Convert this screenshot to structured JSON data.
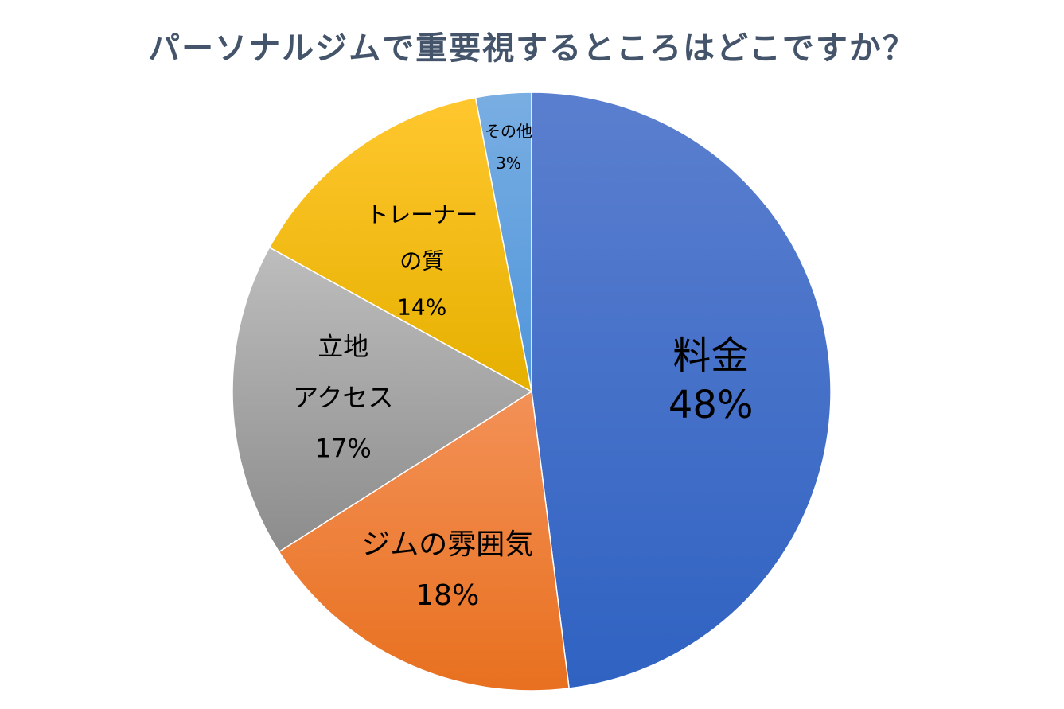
{
  "chart_data": {
    "type": "pie",
    "title": "パーソナルジムで重要視するところはどこですか？",
    "slices": [
      {
        "label_lines": [
          "料金"
        ],
        "value": 48,
        "value_label": "48%",
        "color_top": "#5b7fcf",
        "color_bottom": "#2f62c2"
      },
      {
        "label_lines": [
          "ジムの雰囲気"
        ],
        "value": 18,
        "value_label": "18%",
        "color_top": "#f39157",
        "color_bottom": "#e8701f"
      },
      {
        "label_lines": [
          "立地",
          "アクセス"
        ],
        "value": 17,
        "value_label": "17%",
        "color_top": "#bdbdbd",
        "color_bottom": "#8c8c8c"
      },
      {
        "label_lines": [
          "トレーナー",
          "の質"
        ],
        "value": 14,
        "value_label": "14%",
        "color_top": "#ffc72e",
        "color_bottom": "#e6b000"
      },
      {
        "label_lines": [
          "その他"
        ],
        "value": 3,
        "value_label": "3%",
        "color_top": "#79aee2",
        "color_bottom": "#4f95db"
      }
    ],
    "start_angle_deg": 0,
    "direction": "clockwise",
    "legend": "none"
  }
}
